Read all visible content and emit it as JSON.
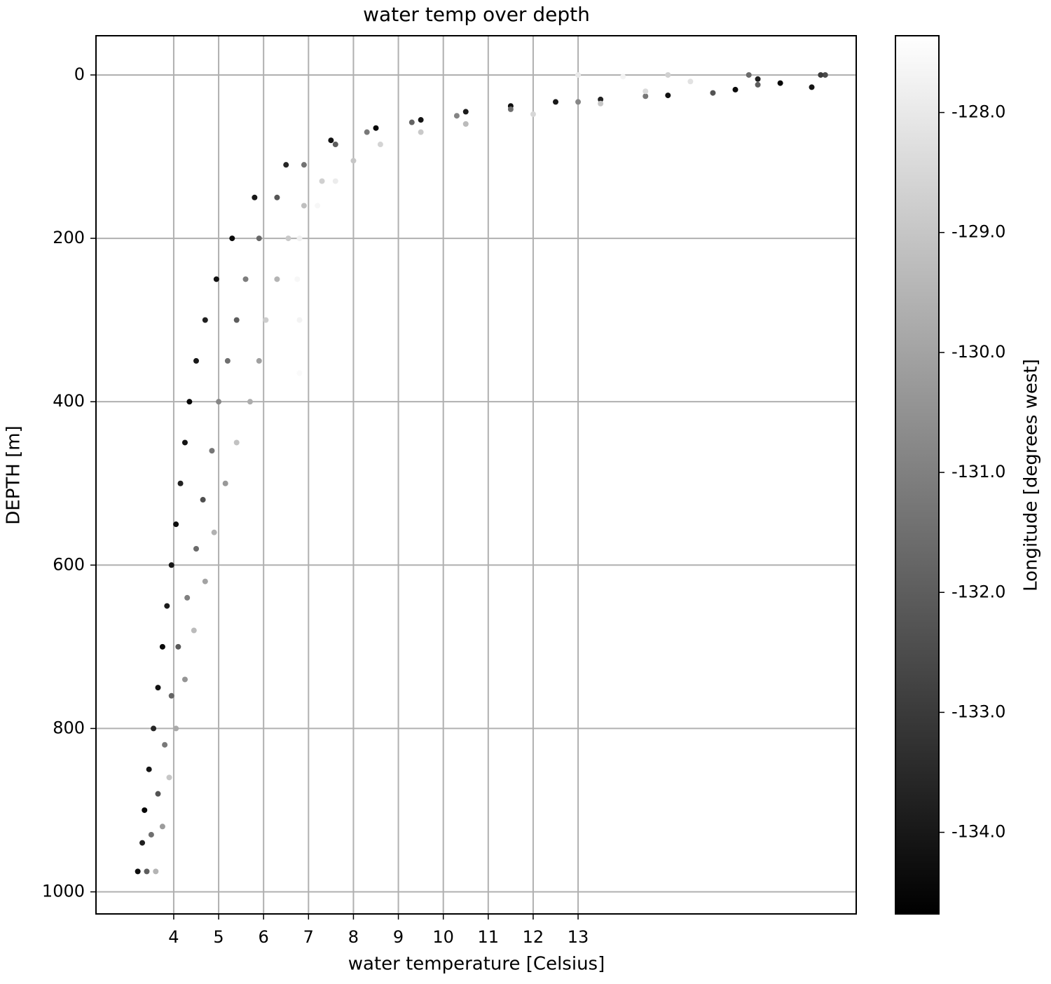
{
  "chart_data": {
    "type": "scatter",
    "title": "water temp over depth",
    "x_label": "water temperature [Celsius]",
    "y_label": "DEPTH [m]",
    "colorbar_label": "Longitude [degrees west]",
    "colormap": "gray",
    "grid": true,
    "y_inverted": true,
    "xlim": [
      2.27,
      19.19
    ],
    "ylim": [
      -48,
      1027
    ],
    "clim": [
      -134.68,
      -127.36
    ],
    "xticks": [
      4,
      5,
      6,
      7,
      8,
      9,
      10,
      11,
      12,
      13
    ],
    "yticks": [
      0,
      200,
      400,
      600,
      800,
      1000
    ],
    "cticks": [
      {
        "value": -128,
        "label": "-128.0"
      },
      {
        "value": -129,
        "label": "-129.0"
      },
      {
        "value": -130,
        "label": "-130.0"
      },
      {
        "value": -131,
        "label": "-131.0"
      },
      {
        "value": -132,
        "label": "-132.0"
      },
      {
        "value": -133,
        "label": "-133.0"
      },
      {
        "value": -134,
        "label": "-134.0"
      }
    ],
    "x": [
      3.2,
      3.3,
      3.35,
      3.45,
      3.55,
      3.65,
      3.75,
      3.85,
      3.95,
      4.05,
      4.15,
      4.25,
      4.35,
      4.5,
      4.7,
      4.95,
      5.3,
      5.8,
      6.5,
      7.5,
      8.5,
      9.5,
      10.5,
      11.5,
      12.5,
      13.5,
      15,
      16.5,
      17.5,
      18.2,
      17,
      18.5,
      3.4,
      3.5,
      3.65,
      3.8,
      3.95,
      4.1,
      4.3,
      4.5,
      4.65,
      4.85,
      5.0,
      5.2,
      5.4,
      5.6,
      5.9,
      6.3,
      6.9,
      7.6,
      8.3,
      9.3,
      10.3,
      11.5,
      13,
      14.5,
      16,
      17,
      16.8,
      3.6,
      3.75,
      3.9,
      4.05,
      4.25,
      4.45,
      4.7,
      4.9,
      5.15,
      5.4,
      5.7,
      5.9,
      6.05,
      6.3,
      6.55,
      6.9,
      7.3,
      8.0,
      8.6,
      9.5,
      10.5,
      12,
      13.5,
      14.5,
      15.5,
      15,
      6.8,
      6.8,
      6.75,
      6.8,
      7.2,
      7.6,
      13,
      14,
      18.4
    ],
    "values": [
      975,
      940,
      900,
      850,
      800,
      750,
      700,
      650,
      600,
      550,
      500,
      450,
      400,
      350,
      300,
      250,
      200,
      150,
      110,
      80,
      65,
      55,
      45,
      38,
      33,
      30,
      25,
      18,
      10,
      15,
      5,
      0,
      975,
      930,
      880,
      820,
      760,
      700,
      640,
      580,
      520,
      460,
      400,
      350,
      300,
      250,
      200,
      150,
      110,
      85,
      70,
      58,
      50,
      42,
      33,
      26,
      22,
      12,
      0,
      975,
      920,
      860,
      800,
      740,
      680,
      620,
      560,
      500,
      450,
      400,
      350,
      300,
      250,
      200,
      160,
      130,
      105,
      85,
      70,
      60,
      48,
      35,
      20,
      8,
      0,
      365,
      300,
      250,
      200,
      160,
      130,
      0,
      2,
      0
    ],
    "color_values": [
      -134.3,
      -133.8,
      -134.5,
      -134.1,
      -133.6,
      -134.2,
      -134.4,
      -133.9,
      -134.0,
      -134.3,
      -133.7,
      -134.1,
      -134.5,
      -134.0,
      -133.8,
      -134.2,
      -134.4,
      -134.0,
      -133.6,
      -134.2,
      -134.5,
      -134.1,
      -133.9,
      -134.3,
      -134.0,
      -133.7,
      -134.2,
      -134.4,
      -134.5,
      -134.1,
      -133.8,
      -132.5,
      -132.0,
      -131.5,
      -132.3,
      -131.2,
      -131.8,
      -132.1,
      -131.0,
      -131.6,
      -132.4,
      -131.3,
      -130.8,
      -131.5,
      -132.0,
      -131.1,
      -131.7,
      -132.2,
      -131.4,
      -132.0,
      -131.2,
      -131.8,
      -130.9,
      -131.5,
      -130.8,
      -131.3,
      -132.3,
      -132.0,
      -131.6,
      -129.5,
      -130.2,
      -129.0,
      -129.8,
      -130.4,
      -129.3,
      -130.0,
      -129.6,
      -130.3,
      -129.1,
      -129.7,
      -130.1,
      -128.8,
      -129.5,
      -128.9,
      -129.2,
      -128.7,
      -129.0,
      -128.6,
      -128.9,
      -129.3,
      -128.5,
      -129.0,
      -128.4,
      -128.2,
      -128.7,
      -127.5,
      -127.7,
      -127.6,
      -127.8,
      -127.6,
      -127.9,
      -128.0,
      -127.7,
      -133.0
    ]
  }
}
